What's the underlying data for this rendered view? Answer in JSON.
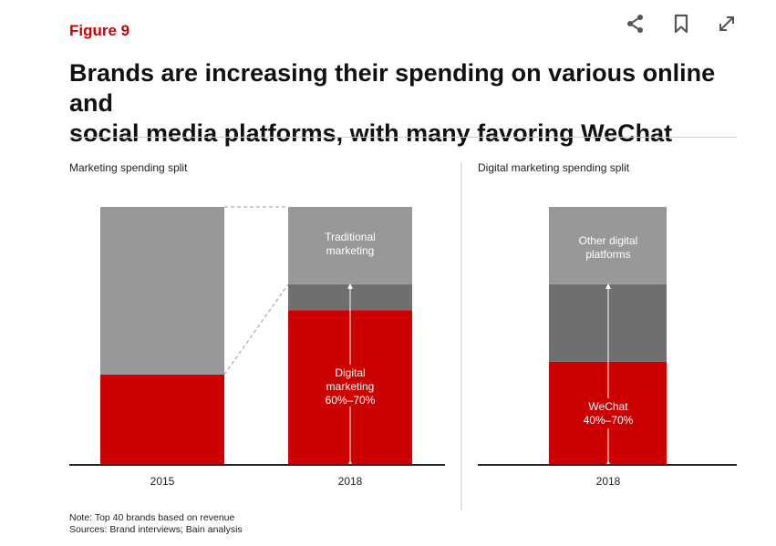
{
  "figure_label": "Figure 9",
  "title_line1": "Brands are increasing their spending on various online and",
  "title_line2": "social media platforms, with many favoring WeChat",
  "toolbar": {
    "share_icon": "share-icon",
    "bookmark_icon": "bookmark-icon",
    "expand_icon": "expand-icon"
  },
  "note": "Note: Top 40 brands based on revenue",
  "sources": "Sources: Brand interviews; Bain analysis",
  "colors": {
    "red": "#cc0000",
    "light_gray": "#98989a",
    "dark_gray": "#6e6f71",
    "accent": "#cc0000"
  },
  "chart_data": [
    {
      "type": "bar",
      "stacked": true,
      "title": "Marketing spending split",
      "categories": [
        "2015",
        "2018"
      ],
      "ylim": [
        0,
        100
      ],
      "series": [
        {
          "name": "Digital marketing",
          "values": [
            35,
            60
          ]
        },
        {
          "name": "",
          "values": [
            0,
            10
          ]
        },
        {
          "name": "Traditional marketing",
          "values": [
            65,
            30
          ]
        }
      ],
      "annotations": {
        "traditional_line1": "Traditional",
        "traditional_line2": "marketing",
        "digital_line1": "Digital",
        "digital_line2": "marketing",
        "digital_range": "60%–70%"
      }
    },
    {
      "type": "bar",
      "stacked": true,
      "title": "Digital marketing spending split",
      "categories": [
        "2018"
      ],
      "ylim": [
        0,
        100
      ],
      "series": [
        {
          "name": "WeChat",
          "values": [
            40
          ]
        },
        {
          "name": "",
          "values": [
            30
          ]
        },
        {
          "name": "Other digital platforms",
          "values": [
            30
          ]
        }
      ],
      "annotations": {
        "other_line1": "Other digital",
        "other_line2": "platforms",
        "wechat_line1": "WeChat",
        "wechat_range": "40%–70%"
      }
    }
  ]
}
